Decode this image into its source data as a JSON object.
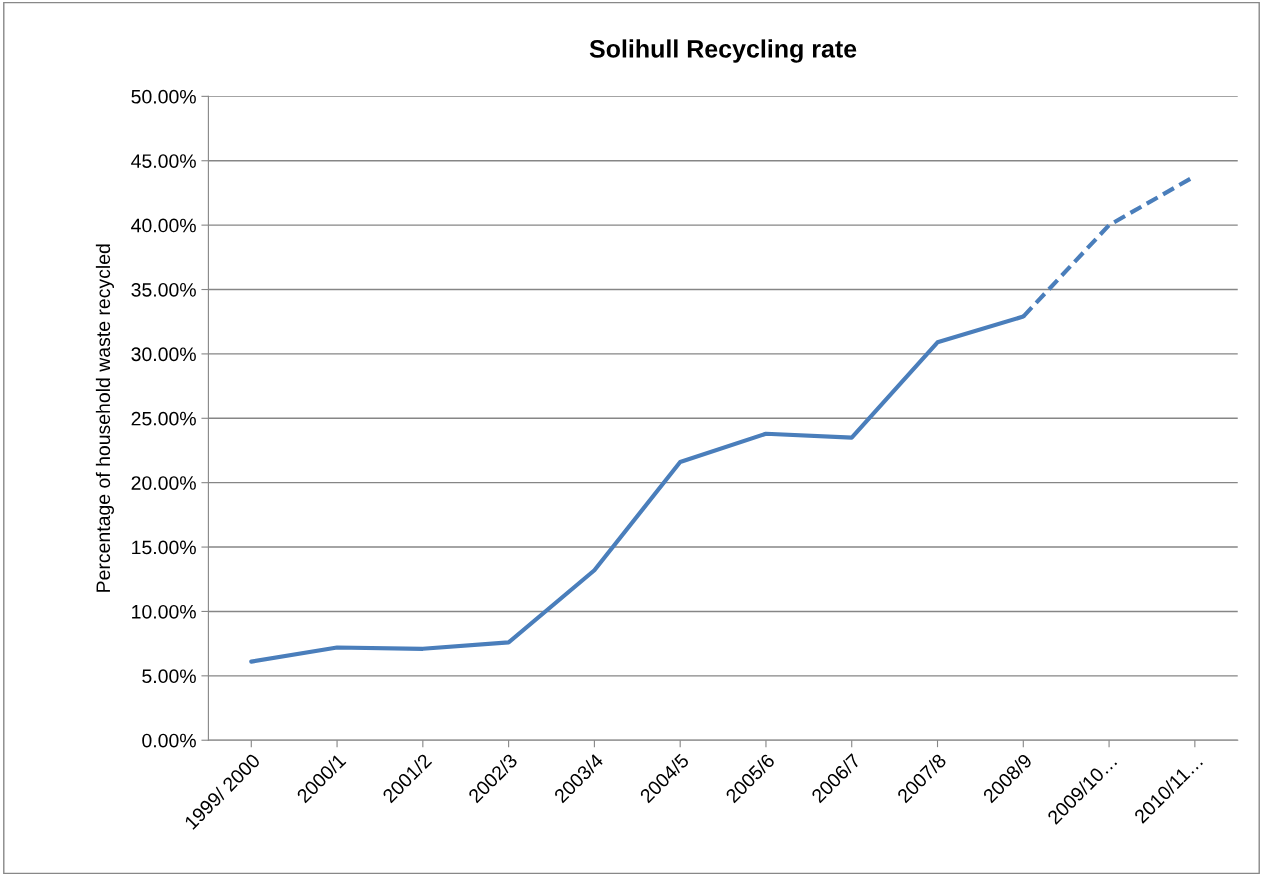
{
  "chart_data": {
    "type": "line",
    "title": "Solihull Recycling rate",
    "ylabel": "Percentage of household waste recycled",
    "categories": [
      "1999/ 2000",
      "2000/1",
      "2001/2",
      "2002/3",
      "2003/4",
      "2004/5",
      "2005/6",
      "2006/7",
      "2007/8",
      "2008/9",
      "2009/10…",
      "2010/11…"
    ],
    "series": [
      {
        "color": "#4a7ebb",
        "line_style": "solid",
        "values": [
          6.1,
          7.2,
          7.1,
          7.6,
          13.2,
          21.6,
          23.8,
          23.5,
          30.9,
          32.9,
          null,
          null
        ]
      },
      {
        "color": "#4a7ebb",
        "line_style": "dashed",
        "values": [
          null,
          null,
          null,
          null,
          null,
          null,
          null,
          null,
          null,
          32.9,
          40.0,
          43.8
        ]
      }
    ],
    "ylim": [
      0,
      50
    ],
    "yticks": [
      {
        "value": 0,
        "label": "0.00%"
      },
      {
        "value": 5,
        "label": "5.00%"
      },
      {
        "value": 10,
        "label": "10.00%"
      },
      {
        "value": 15,
        "label": "15.00%"
      },
      {
        "value": 20,
        "label": "20.00%"
      },
      {
        "value": 25,
        "label": "25.00%"
      },
      {
        "value": 30,
        "label": "30.00%"
      },
      {
        "value": 35,
        "label": "35.00%"
      },
      {
        "value": 40,
        "label": "40.00%"
      },
      {
        "value": 45,
        "label": "45.00%"
      },
      {
        "value": 50,
        "label": "50.00%"
      }
    ],
    "grid": "y",
    "legend": false,
    "marker": "none"
  }
}
